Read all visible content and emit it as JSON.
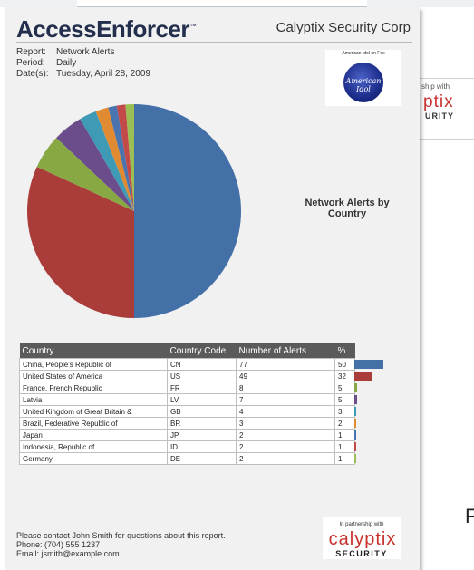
{
  "background": {
    "partner_fragment": {
      "ship": "ship with",
      "ptix": "ptix",
      "urity": "URITY"
    },
    "letter_fragment": "F"
  },
  "report": {
    "brand": "AccessEnforcer",
    "brand_tm": "™",
    "company": "Calyptix Security Corp",
    "meta": {
      "report_key": "Report:",
      "report_value": "Network Alerts",
      "period_key": "Period:",
      "period_value": "Daily",
      "dates_key": "Date(s):",
      "dates_value": "Tuesday, April 28, 2009"
    },
    "idol_image": {
      "caption": "American Idol on Fox",
      "logo_text": "American Idol"
    },
    "chart_title_line1": "Network Alerts by",
    "chart_title_line2": "Country",
    "table": {
      "headers": [
        "Country",
        "Country Code",
        "Number of Alerts",
        "%"
      ],
      "rows": [
        {
          "country": "China, People's Republic of",
          "code": "CN",
          "alerts": "77",
          "pct": "50"
        },
        {
          "country": "United States of America",
          "code": "US",
          "alerts": "49",
          "pct": "32"
        },
        {
          "country": "France, French Republic",
          "code": "FR",
          "alerts": "8",
          "pct": "5"
        },
        {
          "country": "Latvia",
          "code": "LV",
          "alerts": "7",
          "pct": "5"
        },
        {
          "country": "United Kingdom of Great Britain &",
          "code": "GB",
          "alerts": "4",
          "pct": "3"
        },
        {
          "country": "Brazil, Federative Republic of",
          "code": "BR",
          "alerts": "3",
          "pct": "2"
        },
        {
          "country": "Japan",
          "code": "JP",
          "alerts": "2",
          "pct": "1"
        },
        {
          "country": "Indonesia, Republic of",
          "code": "ID",
          "alerts": "2",
          "pct": "1"
        },
        {
          "country": "Germany",
          "code": "DE",
          "alerts": "2",
          "pct": "1"
        }
      ]
    },
    "footer": {
      "line1": "Please contact John Smith for questions about this report.",
      "line2": "Phone: (704) 555 1237",
      "line3": "Email: jsmith@example.com"
    },
    "partner": {
      "label": "In partnership with",
      "name": "calyptix",
      "sub": "SECURITY"
    }
  },
  "chart_data": {
    "type": "pie",
    "title": "Network Alerts by Country",
    "categories": [
      "CN",
      "US",
      "FR",
      "LV",
      "GB",
      "BR",
      "JP",
      "ID",
      "DE"
    ],
    "values": [
      77,
      49,
      8,
      7,
      4,
      3,
      2,
      2,
      2
    ],
    "colors": [
      "#4470a8",
      "#aa3d3a",
      "#88a843",
      "#6c4d8c",
      "#3e9ab5",
      "#e08a32",
      "#4a74b0",
      "#c24a48",
      "#9bbf55"
    ]
  }
}
